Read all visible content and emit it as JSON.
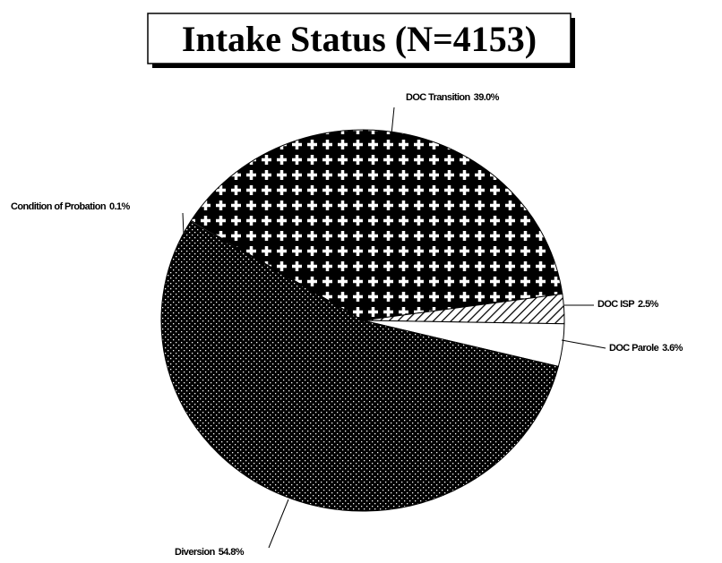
{
  "chart_data": {
    "type": "pie",
    "title": "Intake Status (N=4153)",
    "categories": [
      "DOC Transition",
      "DOC ISP",
      "DOC Parole",
      "Diversion",
      "Condition of Probation"
    ],
    "values": [
      39.0,
      2.5,
      3.6,
      54.8,
      0.1
    ],
    "value_labels": [
      "39.0%",
      "2.5%",
      "3.6%",
      "54.8%",
      "0.1%"
    ]
  }
}
